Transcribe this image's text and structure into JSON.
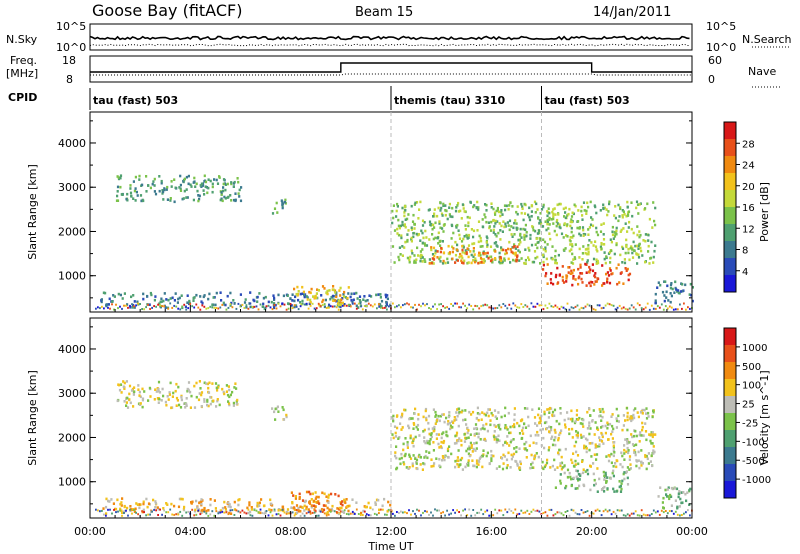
{
  "header": {
    "station": "Goose Bay (fitACF)",
    "beam": "Beam 15",
    "date": "14/Jan/2011"
  },
  "panels": {
    "nsky_label": "N.Sky",
    "nsky_ticks": [
      "10^5",
      "10^0"
    ],
    "nsearch_label": "N.Search",
    "nsearch_ticks": [
      "10^5",
      "10^0"
    ],
    "freq_label_top": "Freq.",
    "freq_label_unit": "[MHz]",
    "freq_ticks": [
      "18",
      "8"
    ],
    "nave_label": "Nave",
    "nave_ticks": [
      "60",
      "0"
    ],
    "cpid_label": "CPID",
    "cpid_segments": [
      {
        "label": "tau (fast) 503",
        "start": 0,
        "end": 12
      },
      {
        "label": "themis (tau) 3310",
        "start": 12,
        "end": 18
      },
      {
        "label": "tau (fast) 503",
        "start": 18,
        "end": 24
      }
    ]
  },
  "time_axis": {
    "ticks": [
      "00:00",
      "04:00",
      "08:00",
      "12:00",
      "16:00",
      "20:00",
      "00:00"
    ],
    "label": "Time UT"
  },
  "chart_data": [
    {
      "type": "heatmap",
      "title": "",
      "ylabel": "Slant Range [km]",
      "xlabel": "",
      "xlim": [
        0,
        24
      ],
      "ylim": [
        180,
        4700
      ],
      "y_ticks": [
        1000,
        2000,
        3000,
        4000
      ],
      "colorbar": {
        "label": "Power [dB]",
        "ticks": [
          "28",
          "24",
          "20",
          "16",
          "12",
          "8",
          "4"
        ],
        "colors": [
          "#1a18d8",
          "#2a4bb8",
          "#3c7a8f",
          "#4fa070",
          "#7bc24a",
          "#c4d93a",
          "#f2c21c",
          "#f08a10",
          "#e8501a",
          "#d81818"
        ]
      },
      "regions": [
        {
          "t0": 1.0,
          "t1": 6.0,
          "r0": 2700,
          "r1": 3300,
          "level": 3
        },
        {
          "t0": 7.2,
          "t1": 7.8,
          "r0": 2400,
          "r1": 2800,
          "level": 3
        },
        {
          "t0": 0.4,
          "t1": 12.0,
          "r0": 300,
          "r1": 650,
          "level": 2
        },
        {
          "t0": 8.0,
          "t1": 10.3,
          "r0": 350,
          "r1": 800,
          "level": 6
        },
        {
          "t0": 12.0,
          "t1": 22.5,
          "r0": 1300,
          "r1": 2700,
          "level": 4
        },
        {
          "t0": 13.5,
          "t1": 17.0,
          "r0": 1300,
          "r1": 1700,
          "level": 7
        },
        {
          "t0": 18.0,
          "t1": 21.5,
          "r0": 800,
          "r1": 1300,
          "level": 8
        },
        {
          "t0": 22.5,
          "t1": 24.0,
          "r0": 400,
          "r1": 900,
          "level": 2
        }
      ]
    },
    {
      "type": "heatmap",
      "title": "",
      "ylabel": "Slant Range [km]",
      "xlabel": "Time UT",
      "xlim": [
        0,
        24
      ],
      "ylim": [
        180,
        4700
      ],
      "y_ticks": [
        1000,
        2000,
        3000,
        4000
      ],
      "colorbar": {
        "label": "Velocity [m s^-1]",
        "ticks": [
          "1000",
          "500",
          "100",
          "25",
          "-25",
          "-100",
          "-500",
          "-1000"
        ],
        "colors": [
          "#1a18d8",
          "#2a4bb8",
          "#3c7a8f",
          "#4fa070",
          "#7bc24a",
          "#bdbdb6",
          "#f2c21c",
          "#f08a10",
          "#e8501a",
          "#d81818"
        ]
      },
      "regions": [
        {
          "t0": 1.0,
          "t1": 6.0,
          "r0": 2700,
          "r1": 3300,
          "level": 5
        },
        {
          "t0": 7.2,
          "t1": 7.8,
          "r0": 2400,
          "r1": 2800,
          "level": 5
        },
        {
          "t0": 0.4,
          "t1": 12.0,
          "r0": 300,
          "r1": 650,
          "level": 6
        },
        {
          "t0": 8.0,
          "t1": 10.3,
          "r0": 350,
          "r1": 800,
          "level": 7
        },
        {
          "t0": 12.0,
          "t1": 22.5,
          "r0": 1300,
          "r1": 2700,
          "level": 5
        },
        {
          "t0": 18.5,
          "t1": 21.5,
          "r0": 800,
          "r1": 1300,
          "level": 4
        },
        {
          "t0": 22.5,
          "t1": 24.0,
          "r0": 400,
          "r1": 900,
          "level": 4
        }
      ]
    }
  ]
}
